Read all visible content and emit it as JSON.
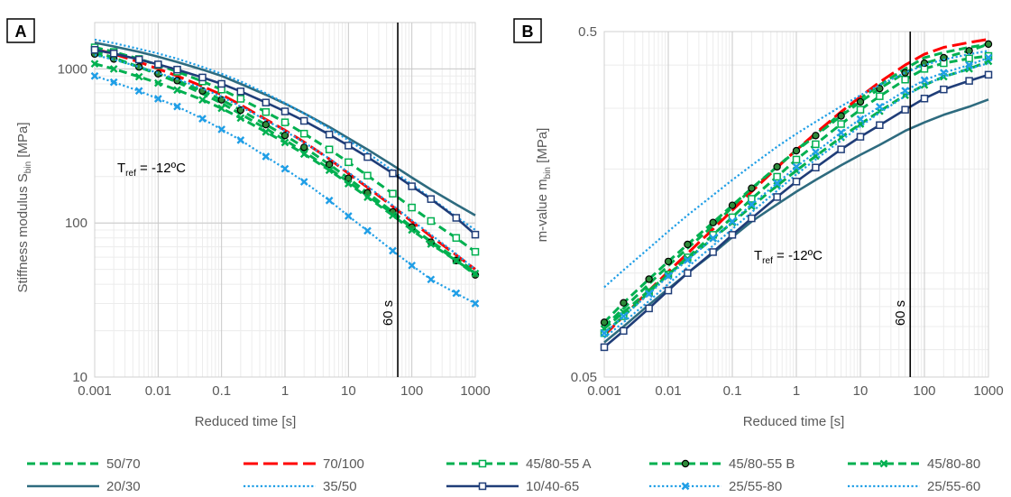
{
  "panels": [
    {
      "id": "A",
      "label": "A",
      "xlabel": "Reduced time [s]",
      "ylabel_main": "Stiffness modulus S",
      "ylabel_sub": "bin",
      "ylabel_unit": " [MPa]",
      "tref_text": "T",
      "tref_sub": "ref",
      "tref_value": " = -12ºC",
      "vline_label": "60 s"
    },
    {
      "id": "B",
      "label": "B",
      "xlabel": "Reduced time [s]",
      "ylabel_main": "m-value m",
      "ylabel_sub": "bin",
      "ylabel_unit": " [MPa]",
      "tref_text": "T",
      "tref_sub": "ref",
      "tref_value": " = -12ºC",
      "vline_label": "60 s"
    }
  ],
  "chart_data": [
    {
      "type": "line",
      "panel": "A",
      "xscale": "log",
      "yscale": "log",
      "xlim": [
        0.001,
        1000
      ],
      "ylim": [
        10,
        2000
      ],
      "xticks": [
        "0.001",
        "0.01",
        "0.1",
        "1",
        "10",
        "100",
        "1000"
      ],
      "yticks": [
        "10",
        "100",
        "1000"
      ],
      "grid": true,
      "vline_x": 60,
      "x": [
        0.001,
        0.002,
        0.005,
        0.01,
        0.02,
        0.05,
        0.1,
        0.2,
        0.5,
        1,
        2,
        5,
        10,
        20,
        50,
        100,
        200,
        500,
        1000
      ],
      "series": [
        {
          "name": "50/70",
          "color": "#00b050",
          "style": "dash",
          "values": [
            1300,
            1180,
            1030,
            920,
            820,
            690,
            600,
            510,
            410,
            345,
            290,
            225,
            185,
            150,
            115,
            93,
            76,
            59,
            48
          ]
        },
        {
          "name": "70/100",
          "color": "#ff0000",
          "style": "longdash",
          "values": [
            1350,
            1250,
            1110,
            1000,
            900,
            770,
            680,
            585,
            470,
            400,
            335,
            260,
            210,
            170,
            128,
            102,
            82,
            62,
            50
          ]
        },
        {
          "name": "45/80-55 A",
          "color": "#00b050",
          "style": "dash",
          "marker": "square",
          "values": [
            1380,
            1290,
            1160,
            1060,
            960,
            830,
            735,
            640,
            525,
            450,
            380,
            300,
            248,
            203,
            155,
            126,
            103,
            80,
            65
          ]
        },
        {
          "name": "45/80-55 B",
          "color": "#00b050",
          "style": "dash",
          "marker": "circle",
          "values": [
            1250,
            1160,
            1030,
            930,
            840,
            720,
            630,
            540,
            435,
            370,
            310,
            240,
            195,
            157,
            118,
            94,
            75,
            57,
            46
          ]
        },
        {
          "name": "45/80-80",
          "color": "#00b050",
          "style": "dash",
          "marker": "x",
          "values": [
            1080,
            1000,
            890,
            810,
            730,
            630,
            555,
            480,
            390,
            333,
            280,
            220,
            180,
            147,
            112,
            90,
            73,
            57,
            47
          ]
        },
        {
          "name": "20/30",
          "color": "#2e6b7f",
          "style": "solid",
          "values": [
            1480,
            1400,
            1290,
            1200,
            1110,
            990,
            900,
            800,
            680,
            595,
            515,
            420,
            355,
            300,
            237,
            197,
            165,
            132,
            112
          ]
        },
        {
          "name": "35/50",
          "color": "#1f9ee6",
          "style": "dot",
          "values": [
            1550,
            1470,
            1350,
            1260,
            1165,
            1030,
            930,
            830,
            695,
            600,
            515,
            410,
            345,
            285,
            218,
            178,
            145,
            110,
            90
          ]
        },
        {
          "name": "10/40-65",
          "color": "#1f3d78",
          "style": "solid",
          "marker": "square",
          "values": [
            1330,
            1260,
            1150,
            1070,
            990,
            880,
            800,
            715,
            605,
            530,
            460,
            375,
            318,
            268,
            210,
            173,
            143,
            108,
            84
          ]
        },
        {
          "name": "25/55-80",
          "color": "#1f9ee6",
          "style": "dot",
          "marker": "x",
          "values": [
            900,
            820,
            720,
            640,
            570,
            475,
            405,
            345,
            270,
            225,
            185,
            140,
            111,
            89,
            66,
            53,
            43,
            35,
            30
          ]
        },
        {
          "name": "25/55-60",
          "color": "#1f9ee6",
          "style": "dot",
          "values": [
            1230,
            1150,
            1030,
            940,
            860,
            745,
            660,
            570,
            465,
            395,
            333,
            262,
            213,
            173,
            130,
            104,
            84,
            63,
            50
          ]
        }
      ]
    },
    {
      "type": "line",
      "panel": "B",
      "xscale": "log",
      "yscale": "log",
      "xlim": [
        0.001,
        1000
      ],
      "ylim": [
        0.05,
        0.5
      ],
      "xticks": [
        "0.001",
        "0.01",
        "0.1",
        "1",
        "10",
        "100",
        "1000"
      ],
      "yticks": [
        "0.05",
        "0.5"
      ],
      "grid": true,
      "vline_x": 60,
      "x": [
        0.001,
        0.002,
        0.005,
        0.01,
        0.02,
        0.05,
        0.1,
        0.2,
        0.5,
        1,
        2,
        5,
        10,
        20,
        50,
        100,
        200,
        500,
        1000
      ],
      "series": [
        {
          "name": "50/70",
          "color": "#00b050",
          "style": "dash",
          "values": [
            0.07,
            0.079,
            0.093,
            0.105,
            0.118,
            0.137,
            0.155,
            0.175,
            0.203,
            0.227,
            0.252,
            0.29,
            0.32,
            0.35,
            0.39,
            0.42,
            0.435,
            0.45,
            0.46
          ]
        },
        {
          "name": "70/100",
          "color": "#ff0000",
          "style": "longdash",
          "values": [
            0.066,
            0.075,
            0.089,
            0.101,
            0.114,
            0.134,
            0.152,
            0.172,
            0.202,
            0.227,
            0.254,
            0.293,
            0.324,
            0.357,
            0.4,
            0.43,
            0.45,
            0.465,
            0.475
          ]
        },
        {
          "name": "45/80-55 A",
          "color": "#00b050",
          "style": "dash",
          "marker": "square",
          "values": [
            0.067,
            0.075,
            0.088,
            0.099,
            0.111,
            0.129,
            0.145,
            0.164,
            0.19,
            0.213,
            0.236,
            0.27,
            0.297,
            0.325,
            0.363,
            0.39,
            0.405,
            0.418,
            0.425
          ]
        },
        {
          "name": "45/80-55 B",
          "color": "#00b050",
          "style": "dash",
          "marker": "circle",
          "values": [
            0.072,
            0.082,
            0.096,
            0.108,
            0.121,
            0.14,
            0.157,
            0.176,
            0.203,
            0.226,
            0.25,
            0.285,
            0.313,
            0.342,
            0.38,
            0.405,
            0.42,
            0.44,
            0.46
          ]
        },
        {
          "name": "45/80-80",
          "color": "#00b050",
          "style": "dash",
          "marker": "x",
          "values": [
            0.069,
            0.077,
            0.089,
            0.099,
            0.11,
            0.126,
            0.14,
            0.156,
            0.179,
            0.198,
            0.218,
            0.247,
            0.27,
            0.294,
            0.327,
            0.35,
            0.37,
            0.39,
            0.41
          ]
        },
        {
          "name": "20/30",
          "color": "#2e6b7f",
          "style": "solid",
          "values": [
            0.063,
            0.07,
            0.081,
            0.09,
            0.1,
            0.114,
            0.127,
            0.141,
            0.158,
            0.172,
            0.186,
            0.205,
            0.22,
            0.235,
            0.258,
            0.273,
            0.287,
            0.303,
            0.318
          ]
        },
        {
          "name": "35/50",
          "color": "#1f9ee6",
          "style": "dot",
          "values": [
            0.065,
            0.072,
            0.083,
            0.093,
            0.104,
            0.12,
            0.134,
            0.15,
            0.173,
            0.193,
            0.213,
            0.242,
            0.266,
            0.291,
            0.325,
            0.35,
            0.37,
            0.39,
            0.405
          ]
        },
        {
          "name": "10/40-65",
          "color": "#1f3d78",
          "style": "solid",
          "marker": "square",
          "values": [
            0.061,
            0.068,
            0.079,
            0.089,
            0.1,
            0.115,
            0.129,
            0.144,
            0.166,
            0.184,
            0.202,
            0.228,
            0.248,
            0.268,
            0.297,
            0.32,
            0.34,
            0.36,
            0.375
          ]
        },
        {
          "name": "25/55-80",
          "color": "#1f9ee6",
          "style": "dot",
          "marker": "x",
          "values": [
            0.067,
            0.075,
            0.087,
            0.098,
            0.109,
            0.126,
            0.141,
            0.158,
            0.182,
            0.203,
            0.224,
            0.255,
            0.279,
            0.303,
            0.337,
            0.362,
            0.38,
            0.4,
            0.42
          ]
        },
        {
          "name": "25/55-60",
          "color": "#1f9ee6",
          "style": "dot",
          "values": [
            0.091,
            0.102,
            0.118,
            0.132,
            0.147,
            0.168,
            0.186,
            0.205,
            0.232,
            0.253,
            0.274,
            0.304,
            0.327,
            0.35,
            0.38,
            0.4,
            0.415,
            0.43,
            0.44
          ]
        }
      ]
    }
  ]
}
